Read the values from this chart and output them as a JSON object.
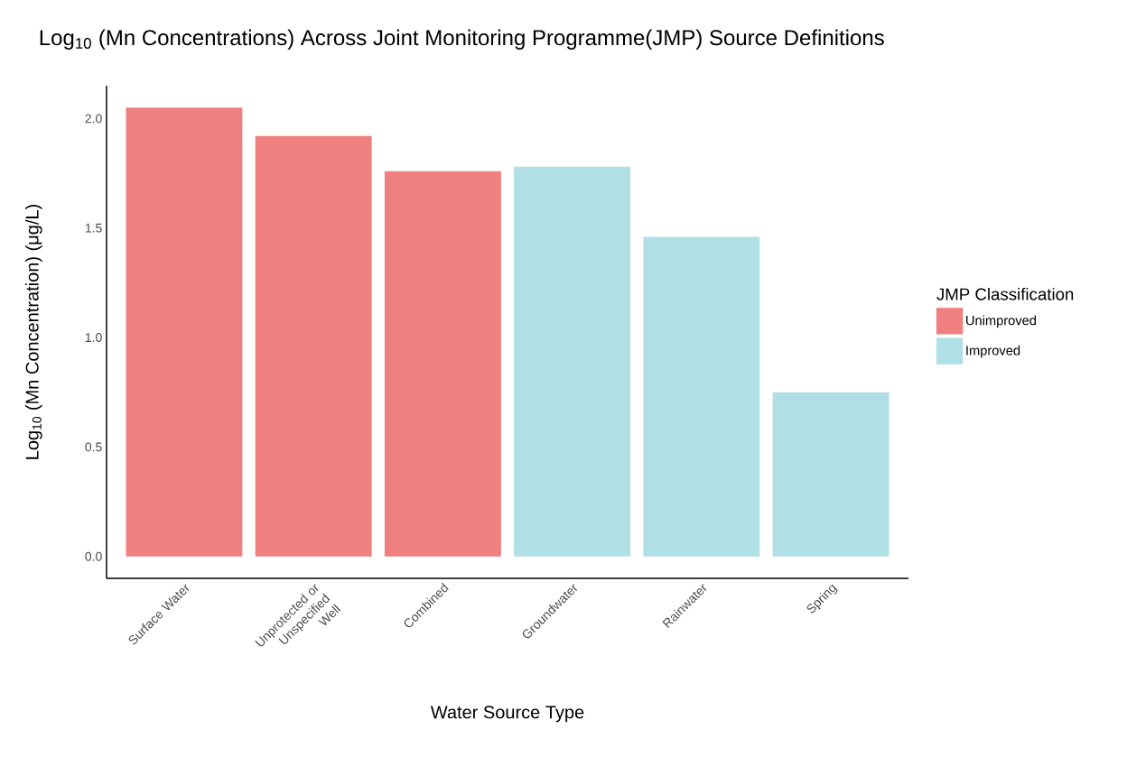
{
  "chart_data": {
    "type": "bar",
    "title": "Log$_{10}$ (Mn Concentrations) Across Joint Monitoring Programme(JMP) Source Definitions",
    "xlabel": "Water Source Type",
    "ylabel": "Log$_{10}$ (Mn Concentration) (μg/L)",
    "legend_title": "JMP Classification",
    "categories": [
      "Surface Water",
      "Unprotected or Unspecified Well",
      "Combined",
      "Groundwater",
      "Rainwater",
      "Spring"
    ],
    "series": [
      {
        "name": "Unimproved",
        "color": "#f07f7f",
        "values": [
          2.05,
          1.92,
          1.76,
          null,
          null,
          null
        ]
      },
      {
        "name": "Improved",
        "color": "#b0dfe5",
        "values": [
          null,
          null,
          null,
          1.78,
          1.46,
          0.75
        ]
      }
    ],
    "ylim": [
      -0.1,
      2.15
    ],
    "yticks": [
      {
        "value": 0,
        "label": "0.0"
      },
      {
        "value": 0.5,
        "label": "0.5"
      },
      {
        "value": 1,
        "label": "1.0"
      },
      {
        "value": 1.5,
        "label": "1.5"
      },
      {
        "value": 2,
        "label": "2.0"
      }
    ],
    "legend": "right"
  }
}
